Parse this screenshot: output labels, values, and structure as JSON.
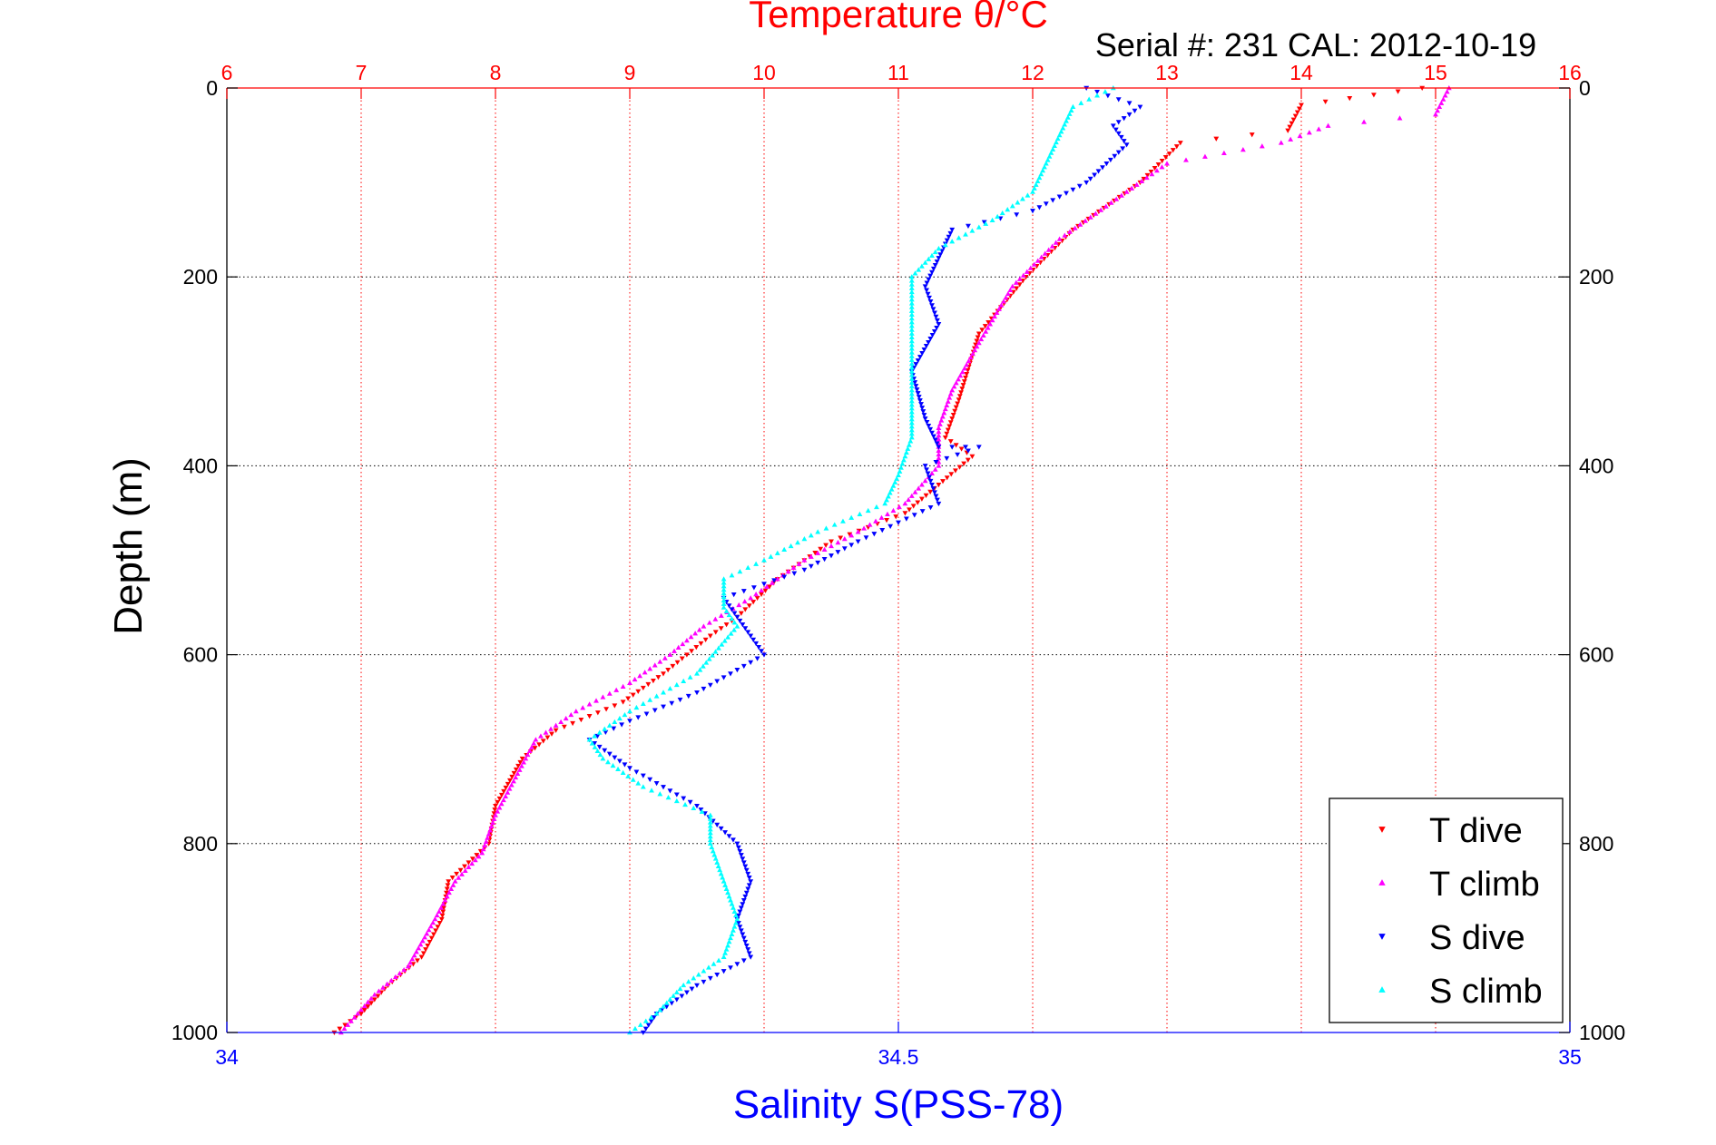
{
  "chart_data": {
    "type": "scatter",
    "title": "Temperature θ/°C",
    "subtitle": "Serial #: 231  CAL: 2012-10-19",
    "ylabel": "Depth (m)",
    "xlabel_bottom": "Salinity S(PSS-78)",
    "top_axis": {
      "label": "Temperature θ/°C",
      "range": [
        6,
        16
      ],
      "ticks": [
        "6",
        "7",
        "8",
        "9",
        "10",
        "11",
        "12",
        "13",
        "14",
        "15",
        "16"
      ],
      "color": "#ff0000"
    },
    "bottom_axis": {
      "label": "Salinity S(PSS-78)",
      "range": [
        34,
        35
      ],
      "ticks": [
        "34",
        "34.5",
        "35"
      ],
      "color": "#0000ff"
    },
    "y_axis": {
      "range": [
        0,
        1000
      ],
      "reversed": true,
      "ticks": [
        "0",
        "200",
        "400",
        "600",
        "800",
        "1000"
      ]
    },
    "grid": true,
    "legend_position": "bottom-right",
    "series": [
      {
        "name": "T dive",
        "axis": "temperature",
        "color": "#ff0000",
        "marker": "triangle-down",
        "points": [
          [
            14.9,
            0
          ],
          [
            14.0,
            18
          ],
          [
            13.9,
            45
          ],
          [
            13.1,
            58
          ],
          [
            12.8,
            100
          ],
          [
            12.3,
            150
          ],
          [
            11.95,
            200
          ],
          [
            11.6,
            260
          ],
          [
            11.45,
            330
          ],
          [
            11.35,
            370
          ],
          [
            11.55,
            390
          ],
          [
            11.3,
            420
          ],
          [
            11.05,
            450
          ],
          [
            10.5,
            480
          ],
          [
            10.1,
            520
          ],
          [
            9.8,
            560
          ],
          [
            9.6,
            580
          ],
          [
            9.25,
            620
          ],
          [
            8.95,
            650
          ],
          [
            8.45,
            680
          ],
          [
            8.2,
            710
          ],
          [
            8.0,
            760
          ],
          [
            7.95,
            800
          ],
          [
            7.65,
            840
          ],
          [
            7.6,
            880
          ],
          [
            7.45,
            920
          ],
          [
            7.2,
            950
          ],
          [
            7.0,
            980
          ],
          [
            6.8,
            1000
          ]
        ]
      },
      {
        "name": "T climb",
        "axis": "temperature",
        "color": "#ff00ff",
        "marker": "triangle-up",
        "points": [
          [
            15.1,
            0
          ],
          [
            15.0,
            28
          ],
          [
            14.2,
            40
          ],
          [
            13.85,
            58
          ],
          [
            13.0,
            80
          ],
          [
            12.7,
            110
          ],
          [
            12.2,
            160
          ],
          [
            11.85,
            210
          ],
          [
            11.6,
            270
          ],
          [
            11.4,
            320
          ],
          [
            11.3,
            360
          ],
          [
            11.3,
            400
          ],
          [
            11.05,
            440
          ],
          [
            10.7,
            470
          ],
          [
            10.3,
            500
          ],
          [
            9.9,
            540
          ],
          [
            9.55,
            570
          ],
          [
            9.3,
            600
          ],
          [
            9.0,
            630
          ],
          [
            8.6,
            660
          ],
          [
            8.3,
            690
          ],
          [
            8.15,
            730
          ],
          [
            8.0,
            770
          ],
          [
            7.9,
            810
          ],
          [
            7.7,
            840
          ],
          [
            7.55,
            880
          ],
          [
            7.35,
            930
          ],
          [
            7.1,
            960
          ],
          [
            6.85,
            1000
          ]
        ]
      },
      {
        "name": "S dive",
        "axis": "salinity",
        "color": "#0000ff",
        "marker": "triangle-down",
        "points": [
          [
            34.64,
            0
          ],
          [
            34.68,
            20
          ],
          [
            34.66,
            40
          ],
          [
            34.67,
            60
          ],
          [
            34.64,
            100
          ],
          [
            34.6,
            130
          ],
          [
            34.54,
            150
          ],
          [
            34.53,
            180
          ],
          [
            34.52,
            210
          ],
          [
            34.53,
            250
          ],
          [
            34.51,
            300
          ],
          [
            34.52,
            350
          ],
          [
            34.53,
            380
          ],
          [
            34.56,
            380
          ],
          [
            34.52,
            400
          ],
          [
            34.53,
            440
          ],
          [
            34.47,
            480
          ],
          [
            34.43,
            510
          ],
          [
            34.37,
            540
          ],
          [
            34.39,
            580
          ],
          [
            34.4,
            600
          ],
          [
            34.35,
            640
          ],
          [
            34.3,
            670
          ],
          [
            34.27,
            690
          ],
          [
            34.3,
            720
          ],
          [
            34.35,
            760
          ],
          [
            34.38,
            800
          ],
          [
            34.39,
            840
          ],
          [
            34.38,
            880
          ],
          [
            34.39,
            920
          ],
          [
            34.35,
            950
          ],
          [
            34.32,
            980
          ],
          [
            34.31,
            1000
          ]
        ]
      },
      {
        "name": "S climb",
        "axis": "salinity",
        "color": "#00ffff",
        "marker": "triangle-up",
        "points": [
          [
            34.66,
            0
          ],
          [
            34.63,
            20
          ],
          [
            34.62,
            50
          ],
          [
            34.61,
            80
          ],
          [
            34.6,
            110
          ],
          [
            34.57,
            140
          ],
          [
            34.53,
            170
          ],
          [
            34.51,
            200
          ],
          [
            34.51,
            240
          ],
          [
            34.51,
            280
          ],
          [
            34.51,
            320
          ],
          [
            34.51,
            370
          ],
          [
            34.5,
            410
          ],
          [
            34.49,
            440
          ],
          [
            34.44,
            470
          ],
          [
            34.4,
            500
          ],
          [
            34.37,
            520
          ],
          [
            34.37,
            550
          ],
          [
            34.38,
            570
          ],
          [
            34.35,
            620
          ],
          [
            34.3,
            660
          ],
          [
            34.27,
            690
          ],
          [
            34.28,
            710
          ],
          [
            34.31,
            740
          ],
          [
            34.36,
            770
          ],
          [
            34.36,
            800
          ],
          [
            34.37,
            840
          ],
          [
            34.38,
            880
          ],
          [
            34.37,
            920
          ],
          [
            34.34,
            950
          ],
          [
            34.32,
            980
          ],
          [
            34.3,
            1000
          ]
        ]
      }
    ]
  }
}
